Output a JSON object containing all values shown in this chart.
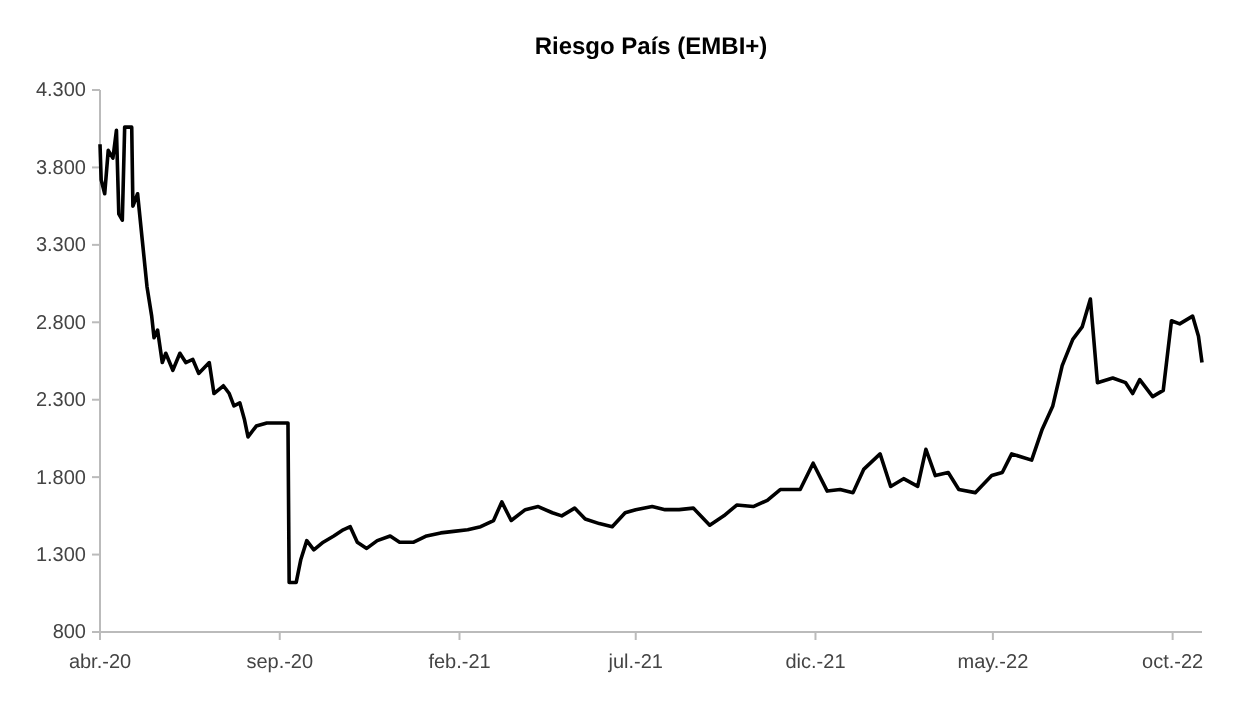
{
  "chart_data": {
    "type": "line",
    "title": "Riesgo País (EMBI+)",
    "x": [
      "2020-04-01",
      "2020-04-02",
      "2020-04-05",
      "2020-04-08",
      "2020-04-12",
      "2020-04-15",
      "2020-04-17",
      "2020-04-20",
      "2020-04-22",
      "2020-04-28",
      "2020-04-29",
      "2020-05-03",
      "2020-05-07",
      "2020-05-11",
      "2020-05-15",
      "2020-05-17",
      "2020-05-20",
      "2020-05-24",
      "2020-05-27",
      "2020-06-02",
      "2020-06-08",
      "2020-06-13",
      "2020-06-19",
      "2020-06-24",
      "2020-07-03",
      "2020-07-07",
      "2020-07-15",
      "2020-07-20",
      "2020-07-24",
      "2020-07-29",
      "2020-08-02",
      "2020-08-05",
      "2020-08-12",
      "2020-08-21",
      "2020-09-08",
      "2020-09-09",
      "2020-09-15",
      "2020-09-19",
      "2020-09-24",
      "2020-09-30",
      "2020-10-08",
      "2020-10-17",
      "2020-10-25",
      "2020-10-31",
      "2020-11-06",
      "2020-11-14",
      "2020-11-23",
      "2020-12-04",
      "2020-12-12",
      "2020-12-24",
      "2021-01-04",
      "2021-01-16",
      "2021-01-27",
      "2021-02-08",
      "2021-02-19",
      "2021-03-02",
      "2021-03-09",
      "2021-03-17",
      "2021-03-29",
      "2021-04-09",
      "2021-04-21",
      "2021-04-29",
      "2021-05-10",
      "2021-05-19",
      "2021-05-31",
      "2021-06-11",
      "2021-06-22",
      "2021-07-01",
      "2021-07-15",
      "2021-07-26",
      "2021-08-07",
      "2021-08-19",
      "2021-09-02",
      "2021-09-14",
      "2021-09-25",
      "2021-10-09",
      "2021-10-21",
      "2021-11-01",
      "2021-11-18",
      "2021-11-29",
      "2021-12-11",
      "2021-12-22",
      "2022-01-02",
      "2022-01-11",
      "2022-01-25",
      "2022-02-03",
      "2022-02-14",
      "2022-02-26",
      "2022-03-05",
      "2022-03-13",
      "2022-03-24",
      "2022-04-02",
      "2022-04-16",
      "2022-04-30",
      "2022-05-09",
      "2022-05-17",
      "2022-06-03",
      "2022-06-12",
      "2022-06-21",
      "2022-06-29",
      "2022-07-08",
      "2022-07-16",
      "2022-07-23",
      "2022-07-29",
      "2022-08-11",
      "2022-08-22",
      "2022-08-28",
      "2022-09-03",
      "2022-09-14",
      "2022-09-23",
      "2022-09-30",
      "2022-10-07",
      "2022-10-18",
      "2022-10-23",
      "2022-10-26"
    ],
    "series": [
      {
        "color": "#000000",
        "values": [
          3950,
          3720,
          3630,
          3910,
          3860,
          4040,
          3500,
          3460,
          4060,
          4060,
          3550,
          3630,
          3330,
          3030,
          2840,
          2700,
          2750,
          2540,
          2600,
          2490,
          2600,
          2540,
          2560,
          2470,
          2540,
          2340,
          2390,
          2340,
          2260,
          2280,
          2170,
          2060,
          2130,
          2150,
          2150,
          1120,
          1120,
          1270,
          1390,
          1330,
          1380,
          1420,
          1460,
          1480,
          1380,
          1340,
          1390,
          1420,
          1380,
          1380,
          1420,
          1440,
          1450,
          1460,
          1480,
          1520,
          1640,
          1520,
          1590,
          1610,
          1570,
          1550,
          1600,
          1530,
          1500,
          1480,
          1570,
          1590,
          1610,
          1590,
          1590,
          1600,
          1490,
          1550,
          1620,
          1610,
          1650,
          1720,
          1720,
          1890,
          1710,
          1720,
          1700,
          1850,
          1950,
          1740,
          1790,
          1740,
          1980,
          1810,
          1830,
          1720,
          1700,
          1810,
          1830,
          1950,
          1910,
          2110,
          2260,
          2520,
          2690,
          2770,
          2950,
          2410,
          2440,
          2410,
          2340,
          2430,
          2320,
          2360,
          2810,
          2790,
          2840,
          2710,
          2540
        ]
      }
    ],
    "xlim": [
      "2020-04-01",
      "2022-10-26"
    ],
    "xticks": [
      {
        "value": "2020-04-01",
        "label": "abr.-20"
      },
      {
        "value": "2020-09-01",
        "label": "sep.-20"
      },
      {
        "value": "2021-02-01",
        "label": "feb.-21"
      },
      {
        "value": "2021-07-01",
        "label": "jul.-21"
      },
      {
        "value": "2021-12-01",
        "label": "dic.-21"
      },
      {
        "value": "2022-05-01",
        "label": "may.-22"
      },
      {
        "value": "2022-10-01",
        "label": "oct.-22"
      }
    ],
    "ylim": [
      800,
      4300
    ],
    "yticks": [
      800,
      {
        "value": 1300,
        "label": "1.300"
      },
      {
        "value": 1800,
        "label": "1.800"
      },
      {
        "value": 2300,
        "label": "2.300"
      },
      {
        "value": 2800,
        "label": "2.800"
      },
      {
        "value": 3300,
        "label": "3.300"
      },
      {
        "value": 3800,
        "label": "3.800"
      },
      {
        "value": 4300,
        "label": "4.300"
      }
    ],
    "grid": false,
    "marker": "none",
    "line_style": "solid"
  }
}
